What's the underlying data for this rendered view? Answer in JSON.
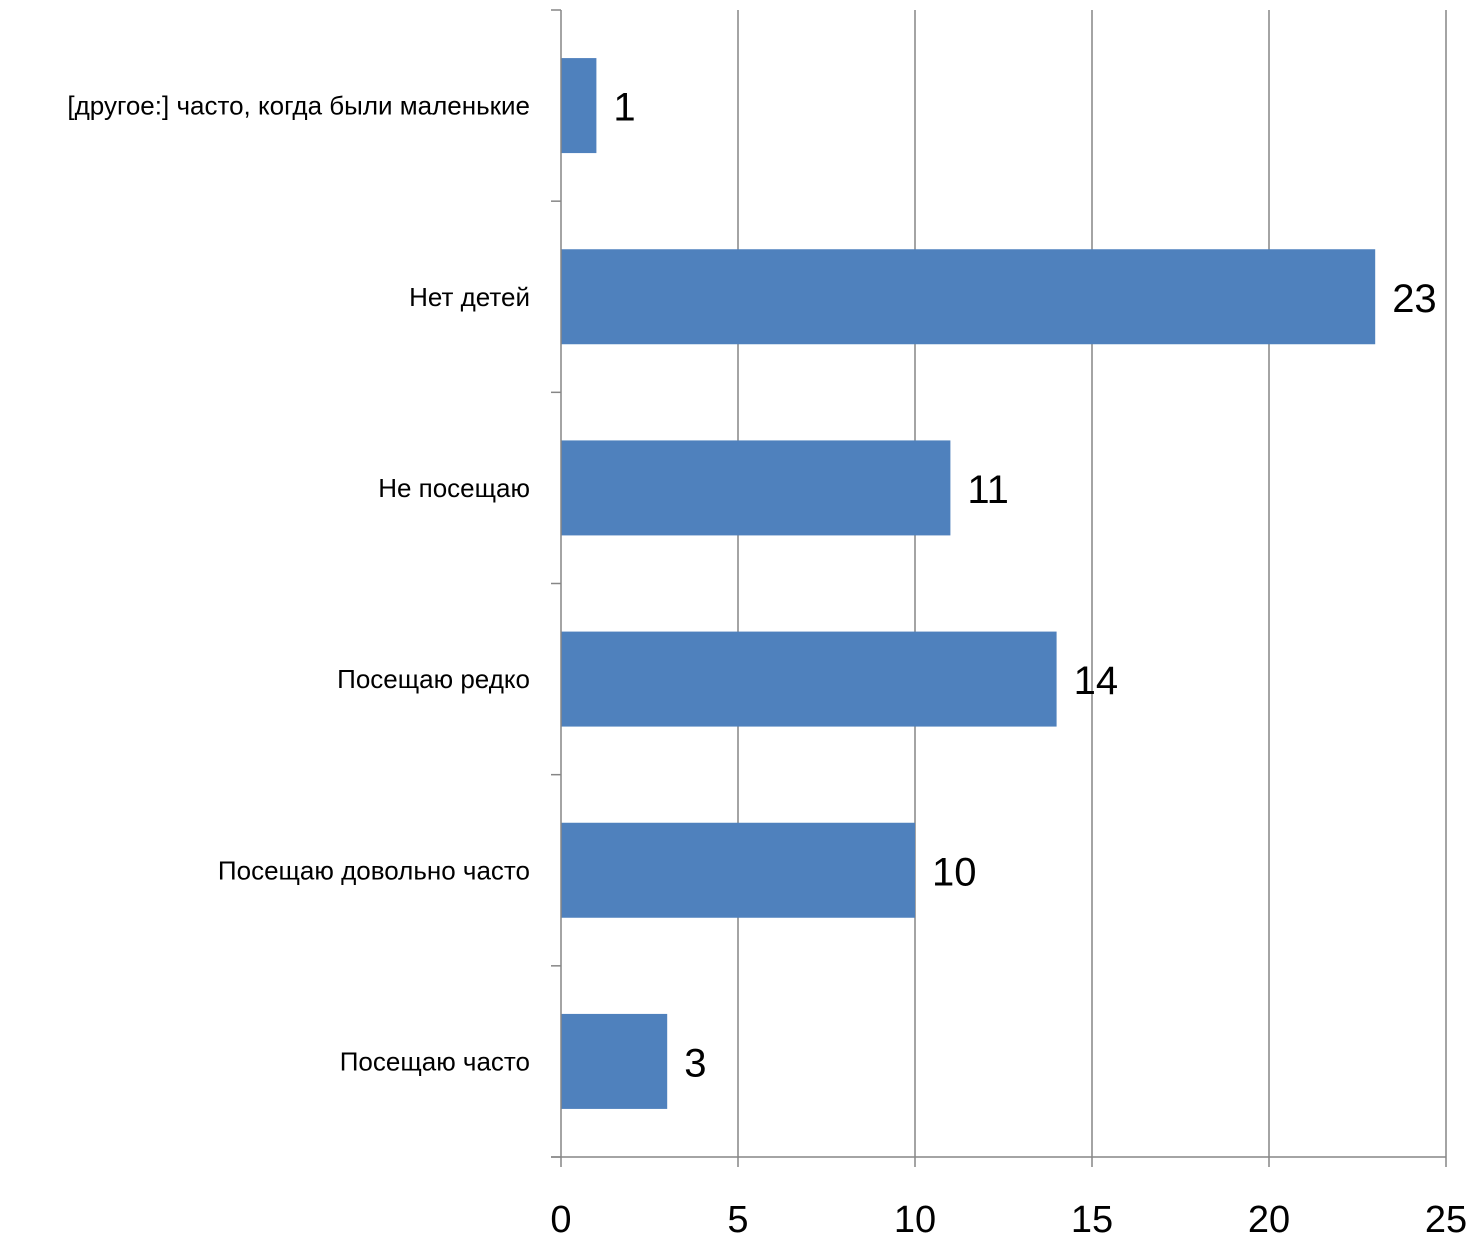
{
  "chart_data": {
    "type": "bar",
    "orientation": "horizontal",
    "categories": [
      "[другое:] часто, когда были маленькие",
      "Нет детей",
      "Не посещаю",
      "Посещаю редко",
      "Посещаю довольно часто",
      "Посещаю часто"
    ],
    "values": [
      1,
      23,
      11,
      14,
      10,
      3
    ],
    "x_ticks": [
      "0",
      "5",
      "10",
      "15",
      "20",
      "25"
    ],
    "xlim": [
      0,
      25
    ],
    "xlabel": "",
    "ylabel": "",
    "title": "",
    "grid": true,
    "legend": "none",
    "bar_color": "#4F81BD",
    "grid_color": "#868686"
  }
}
